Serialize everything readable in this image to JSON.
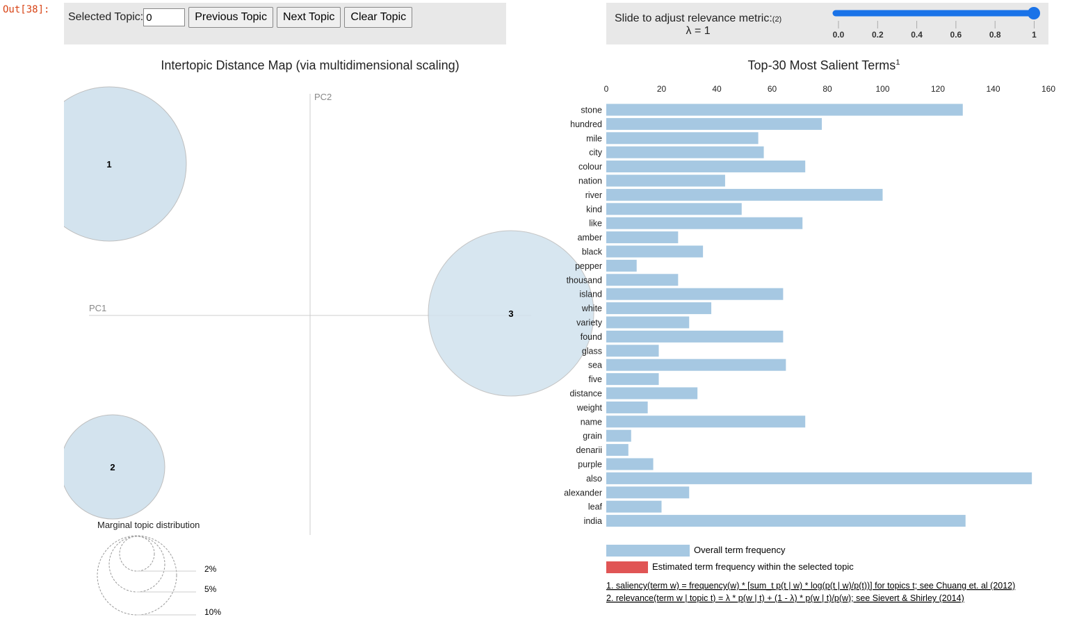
{
  "cell_label": "Out[38]:",
  "controls": {
    "selected_topic_label": "Selected Topic:",
    "selected_topic_value": "0",
    "previous": "Previous Topic",
    "next": "Next Topic",
    "clear": "Clear Topic"
  },
  "relevance": {
    "label": "Slide to adjust relevance metric:",
    "footnote_ref": "(2)",
    "lambda_text": "λ = 1",
    "value": 1,
    "ticks": [
      "0.0",
      "0.2",
      "0.4",
      "0.6",
      "0.8",
      "1"
    ]
  },
  "left_panel": {
    "title": "Intertopic Distance Map (via multidimensional scaling)",
    "pc1": "PC1",
    "pc2": "PC2",
    "topics": [
      {
        "label": "1"
      },
      {
        "label": "2"
      },
      {
        "label": "3"
      }
    ],
    "marginal": {
      "title": "Marginal topic distribution",
      "labels": [
        "2%",
        "5%",
        "10%"
      ]
    }
  },
  "colors": {
    "bar": "#a6c8e2",
    "topic_bar": "#e05555",
    "circle": "#d1e2ee",
    "slider": "#1a73e8"
  },
  "chart_data": {
    "type": "bar",
    "orientation": "horizontal",
    "title": "Top-30 Most Salient Terms",
    "title_sup": "1",
    "xlim": [
      0,
      160
    ],
    "xticks": [
      "0",
      "20",
      "40",
      "60",
      "80",
      "100",
      "120",
      "140",
      "160"
    ],
    "categories": [
      "stone",
      "hundred",
      "mile",
      "city",
      "colour",
      "nation",
      "river",
      "kind",
      "like",
      "amber",
      "black",
      "pepper",
      "thousand",
      "island",
      "white",
      "variety",
      "found",
      "glass",
      "sea",
      "five",
      "distance",
      "weight",
      "name",
      "grain",
      "denarii",
      "purple",
      "also",
      "alexander",
      "leaf",
      "india"
    ],
    "values": [
      129,
      78,
      55,
      57,
      72,
      43,
      100,
      49,
      71,
      26,
      35,
      11,
      26,
      64,
      38,
      30,
      64,
      19,
      65,
      19,
      33,
      15,
      72,
      9,
      8,
      17,
      154,
      30,
      20,
      130
    ],
    "legend": [
      "Overall term frequency",
      "Estimated term frequency within the selected topic"
    ]
  },
  "footnotes": [
    "1. saliency(term w) = frequency(w) * [sum_t p(t | w) * log(p(t | w)/p(t))] for topics t; see Chuang et. al (2012)",
    "2. relevance(term w | topic t) = λ * p(w | t) + (1 - λ) * p(w | t)/p(w); see Sievert & Shirley (2014)"
  ]
}
